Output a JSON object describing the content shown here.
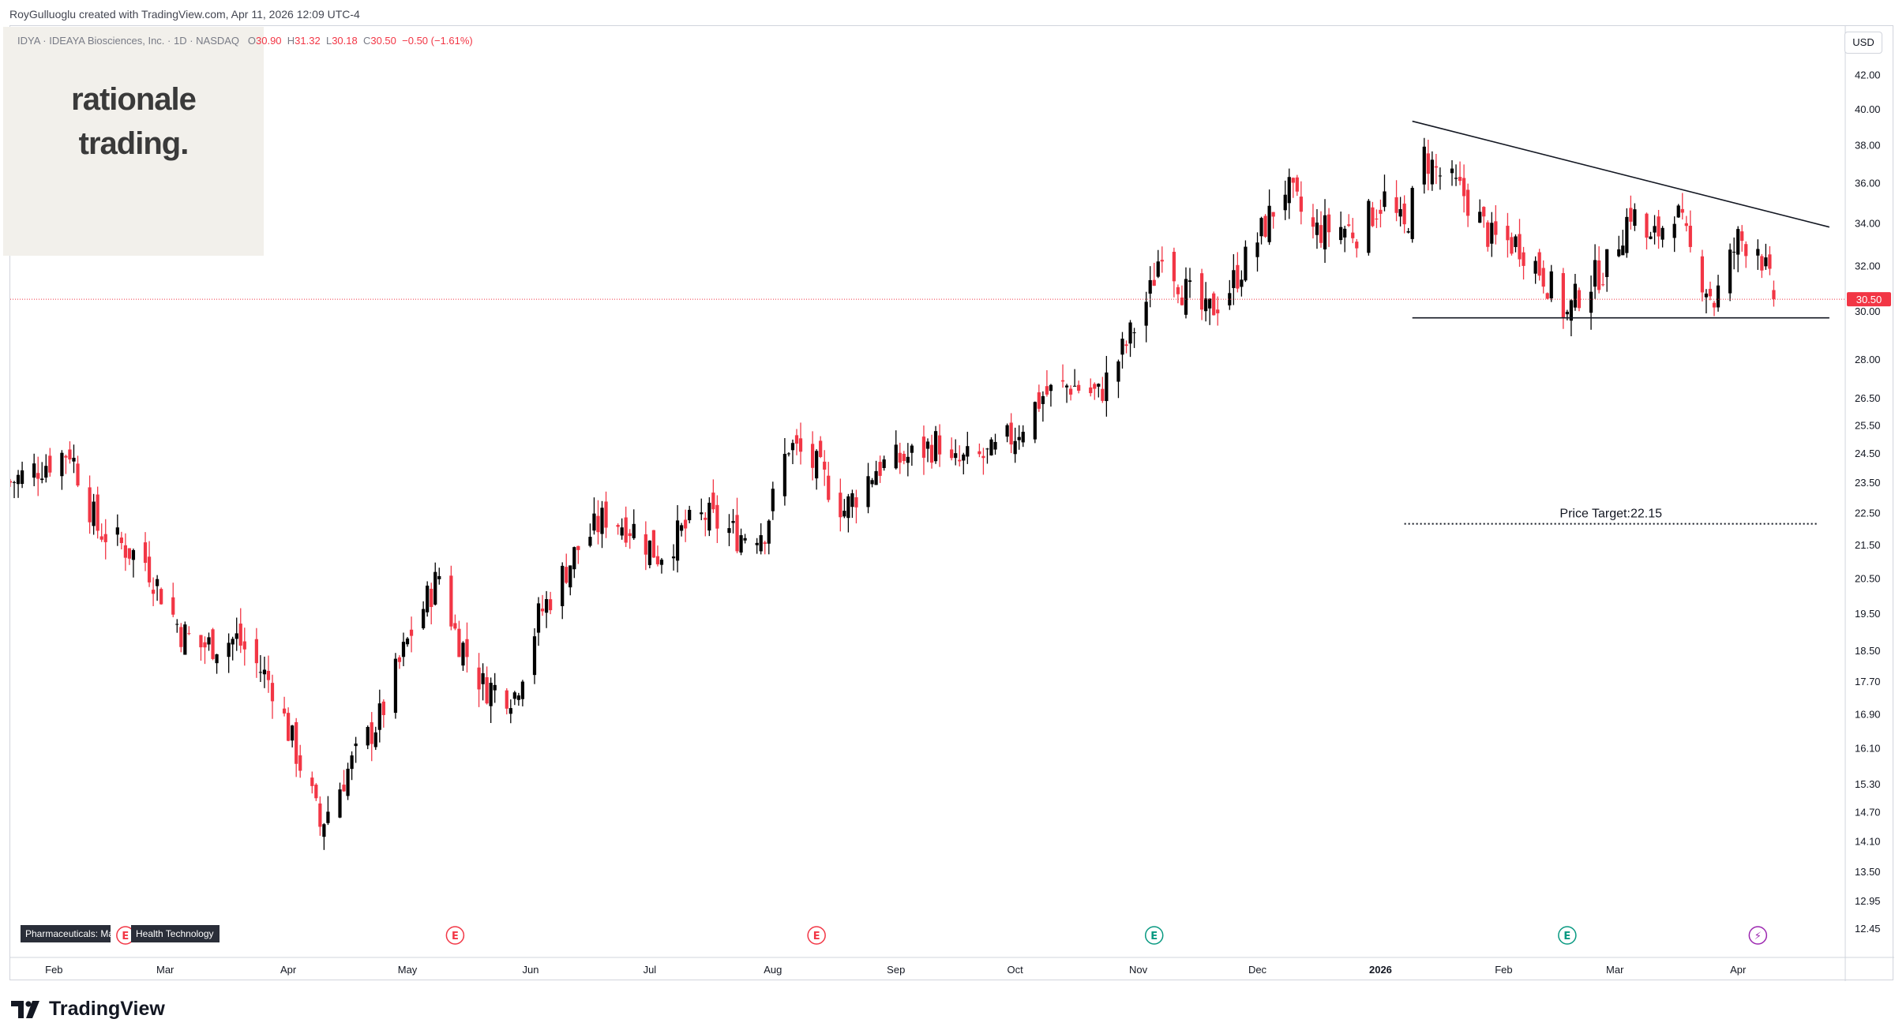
{
  "header": {
    "created_by": "RoyGulluoglu created with TradingView.com, Apr 11, 2026 12:09 UTC-4"
  },
  "legend": {
    "symbol_line": "IDYA · IDEAYA Biosciences, Inc. · 1D · NASDAQ",
    "open_label": "O",
    "open": "30.90",
    "high_label": "H",
    "high": "31.32",
    "low_label": "L",
    "low": "30.18",
    "close_label": "C",
    "close": "30.50",
    "change": "−0.50 (−1.61%)"
  },
  "brand": {
    "line1": "rationale",
    "line2": "trading."
  },
  "currency_button": "USD",
  "badges": {
    "sector": "Pharmaceuticals: Major",
    "industry": "Health Technology"
  },
  "footer": {
    "logo_text": "TradingView"
  },
  "colors": {
    "up": "#000000",
    "down": "#f23645",
    "last_price": "#f23645",
    "grid_text": "#131722"
  },
  "event_icons": [
    {
      "kind": "earnings",
      "letter": "E",
      "color": "#f23645",
      "date": "2025-02-19"
    },
    {
      "kind": "earnings",
      "letter": "E",
      "color": "#f23645",
      "date": "2025-05-13"
    },
    {
      "kind": "earnings",
      "letter": "E",
      "color": "#f23645",
      "date": "2025-08-12"
    },
    {
      "kind": "earnings",
      "letter": "E",
      "color": "#089981",
      "date": "2025-11-05"
    },
    {
      "kind": "earnings",
      "letter": "E",
      "color": "#089981",
      "date": "2026-02-17"
    },
    {
      "kind": "dividend-split",
      "letter": "⚡",
      "color": "#9c27b0",
      "date": "2026-04-06"
    }
  ],
  "chart_data": {
    "type": "candlestick",
    "scale": "log",
    "x_start": "2025-01-21",
    "x_end": "2026-04-28",
    "ylim": [
      12.0,
      44.5
    ],
    "y_ticks": [
      "42.00",
      "40.00",
      "38.00",
      "36.00",
      "34.00",
      "32.00",
      "30.00",
      "28.00",
      "26.50",
      "25.50",
      "24.50",
      "23.50",
      "22.50",
      "21.50",
      "20.50",
      "19.50",
      "18.50",
      "17.70",
      "16.90",
      "16.10",
      "15.30",
      "14.70",
      "14.10",
      "13.50",
      "12.95",
      "12.45"
    ],
    "x_ticks": [
      {
        "label": "Feb",
        "date": "2025-02-01"
      },
      {
        "label": "Mar",
        "date": "2025-03-01"
      },
      {
        "label": "Apr",
        "date": "2025-04-01"
      },
      {
        "label": "May",
        "date": "2025-05-01"
      },
      {
        "label": "Jun",
        "date": "2025-06-01"
      },
      {
        "label": "Jul",
        "date": "2025-07-01"
      },
      {
        "label": "Aug",
        "date": "2025-08-01"
      },
      {
        "label": "Sep",
        "date": "2025-09-01"
      },
      {
        "label": "Oct",
        "date": "2025-10-01"
      },
      {
        "label": "Nov",
        "date": "2025-11-01"
      },
      {
        "label": "Dec",
        "date": "2025-12-01"
      },
      {
        "label": "2026",
        "date": "2026-01-01"
      },
      {
        "label": "Feb",
        "date": "2026-02-01"
      },
      {
        "label": "Mar",
        "date": "2026-03-01"
      },
      {
        "label": "Apr",
        "date": "2026-04-01"
      }
    ],
    "last_price": 30.5,
    "last_price_label": "30.50",
    "price_path": [
      [
        "2025-01-21",
        23.5
      ],
      [
        "2025-02-05",
        24.6
      ],
      [
        "2025-02-12",
        22.0
      ],
      [
        "2025-02-24",
        21.0
      ],
      [
        "2025-03-05",
        19.0
      ],
      [
        "2025-03-10",
        18.6
      ],
      [
        "2025-03-19",
        18.8
      ],
      [
        "2025-03-28",
        17.6
      ],
      [
        "2025-04-07",
        15.0
      ],
      [
        "2025-04-09",
        14.4
      ],
      [
        "2025-04-16",
        15.6
      ],
      [
        "2025-04-24",
        16.8
      ],
      [
        "2025-05-02",
        19.0
      ],
      [
        "2025-05-09",
        20.6
      ],
      [
        "2025-05-13",
        19.0
      ],
      [
        "2025-05-20",
        17.6
      ],
      [
        "2025-05-28",
        17.4
      ],
      [
        "2025-06-03",
        19.4
      ],
      [
        "2025-06-13",
        21.4
      ],
      [
        "2025-06-20",
        22.4
      ],
      [
        "2025-06-27",
        22.0
      ],
      [
        "2025-07-03",
        21.2
      ],
      [
        "2025-07-10",
        22.0
      ],
      [
        "2025-07-15",
        22.4
      ],
      [
        "2025-07-23",
        21.8
      ],
      [
        "2025-07-30",
        22.0
      ],
      [
        "2025-08-05",
        24.8
      ],
      [
        "2025-08-12",
        24.0
      ],
      [
        "2025-08-19",
        22.6
      ],
      [
        "2025-08-27",
        24.0
      ],
      [
        "2025-09-05",
        24.4
      ],
      [
        "2025-09-12",
        24.9
      ],
      [
        "2025-09-15",
        24.0
      ],
      [
        "2025-09-18",
        24.2
      ],
      [
        "2025-09-25",
        24.4
      ],
      [
        "2025-10-01",
        25.2
      ],
      [
        "2025-10-08",
        26.6
      ],
      [
        "2025-10-15",
        27.0
      ],
      [
        "2025-10-22",
        26.6
      ],
      [
        "2025-10-29",
        28.6
      ],
      [
        "2025-11-04",
        30.8
      ],
      [
        "2025-11-07",
        33.0
      ],
      [
        "2025-11-12",
        31.0
      ],
      [
        "2025-11-18",
        29.8
      ],
      [
        "2025-11-24",
        31.0
      ],
      [
        "2025-12-01",
        33.2
      ],
      [
        "2025-12-08",
        35.8
      ],
      [
        "2025-12-15",
        33.6
      ],
      [
        "2025-12-22",
        33.8
      ],
      [
        "2025-12-26",
        33.6
      ],
      [
        "2026-01-02",
        35.2
      ],
      [
        "2026-01-07",
        33.6
      ],
      [
        "2026-01-12",
        37.4
      ],
      [
        "2026-01-16",
        36.4
      ],
      [
        "2026-01-22",
        35.4
      ],
      [
        "2026-01-29",
        33.2
      ],
      [
        "2026-02-05",
        33.0
      ],
      [
        "2026-02-11",
        31.6
      ],
      [
        "2026-02-17",
        29.8
      ],
      [
        "2026-02-20",
        30.8
      ],
      [
        "2026-02-27",
        32.0
      ],
      [
        "2026-03-05",
        34.6
      ],
      [
        "2026-03-10",
        33.0
      ],
      [
        "2026-03-16",
        34.8
      ],
      [
        "2026-03-20",
        32.6
      ],
      [
        "2026-03-26",
        30.4
      ],
      [
        "2026-04-01",
        33.2
      ],
      [
        "2026-04-06",
        33.0
      ],
      [
        "2026-04-10",
        30.5
      ]
    ],
    "overrides": [
      {
        "date": "2026-04-10",
        "open": 30.9,
        "high": 31.32,
        "low": 30.18,
        "close": 30.5
      }
    ],
    "drawings": {
      "trend_line": {
        "start": [
          "2026-01-09",
          39.3
        ],
        "end": [
          "2026-04-24",
          33.8
        ]
      },
      "support_line": {
        "start": [
          "2026-01-09",
          29.7
        ],
        "end": [
          "2026-04-24",
          29.7
        ]
      },
      "target_line": {
        "start": [
          "2026-01-07",
          22.15
        ],
        "end": [
          "2026-04-21",
          22.15
        ],
        "label": "Price Target:22.15"
      }
    }
  }
}
